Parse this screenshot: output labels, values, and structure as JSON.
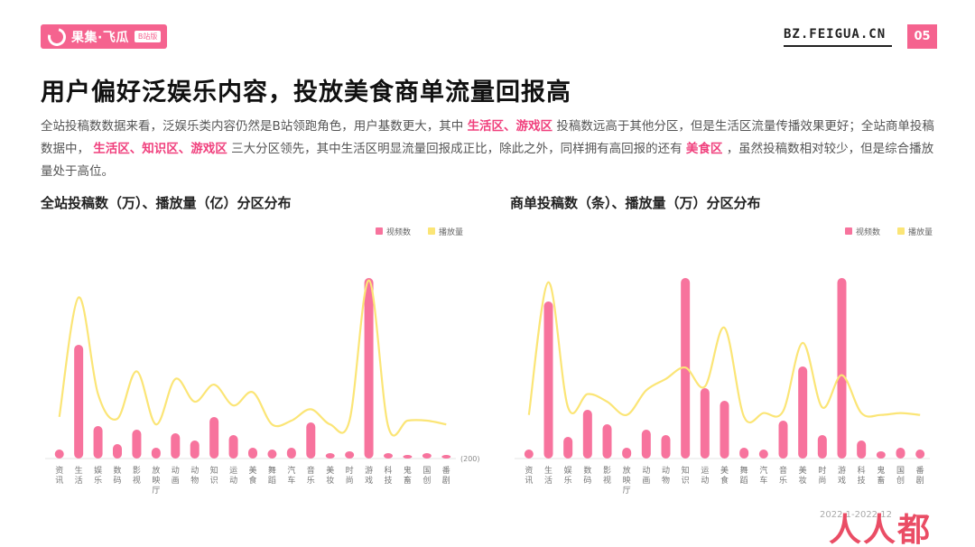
{
  "brand": {
    "name": "果集·飞瓜",
    "badge": "B站版",
    "site": "BZ.FEIGUA.CN",
    "page": "05"
  },
  "title": "用户偏好泛娱乐内容，投放美食商单流量回报高",
  "description": {
    "p1": "全站投稿数数据来看，泛娱乐类内容仍然是B站领跑角色，用户基数更大，其中",
    "h1": "生活区、游戏区",
    "p2": "投稿数远高于其他分区，但是生活区流量传播效果更好；全站商单投稿数据中，",
    "h2": "生活区、知识区、游戏区",
    "p3": "三大分区领先，其中生活区明显流量回报成正比，除此之外，同样拥有高回报的还有",
    "h3": "美食区",
    "p4": "，虽然投稿数相对较少，但是综合播放量处于高位。"
  },
  "footer": {
    "note": "2022.1-2022.12",
    "watermark": "人人都"
  },
  "colors": {
    "bar": "#f7739d",
    "line": "#fbe576",
    "accent": "#f5638f"
  },
  "chart_data": [
    {
      "type": "bar",
      "title": "全站投稿数（万）、播放量（亿）分区分布",
      "legend": [
        "视频数",
        "播放量"
      ],
      "legend_position": "top-right",
      "annotation": "(200)",
      "categories": [
        "资讯",
        "生活",
        "娱乐",
        "数码",
        "影视",
        "放映厅",
        "动画",
        "动物",
        "知识",
        "运动",
        "美食",
        "舞蹈",
        "汽车",
        "音乐",
        "美妆",
        "时尚",
        "游戏",
        "科技",
        "鬼畜",
        "国创",
        "番剧"
      ],
      "series": [
        {
          "name": "视频数",
          "type": "bar",
          "values": [
            5,
            63,
            18,
            8,
            16,
            6,
            14,
            10,
            23,
            13,
            6,
            5,
            6,
            20,
            3,
            4,
            100,
            3,
            2,
            3,
            2
          ]
        },
        {
          "name": "播放量",
          "type": "line",
          "values": [
            22,
            85,
            34,
            21,
            46,
            18,
            42,
            30,
            39,
            28,
            35,
            18,
            20,
            26,
            18,
            20,
            94,
            17,
            20,
            20,
            18
          ]
        }
      ],
      "grid": false
    },
    {
      "type": "bar",
      "title": "商单投稿数（条）、播放量（万）分区分布",
      "legend": [
        "视频数",
        "播放量"
      ],
      "legend_position": "top-right",
      "categories": [
        "资讯",
        "生活",
        "娱乐",
        "数码",
        "影视",
        "放映厅",
        "动画",
        "动物",
        "知识",
        "运动",
        "美食",
        "舞蹈",
        "汽车",
        "音乐",
        "美妆",
        "时尚",
        "游戏",
        "科技",
        "鬼畜",
        "国创",
        "番剧"
      ],
      "series": [
        {
          "name": "视频数",
          "type": "bar",
          "values": [
            5,
            87,
            12,
            27,
            19,
            6,
            16,
            13,
            100,
            39,
            32,
            6,
            5,
            21,
            51,
            13,
            100,
            10,
            4,
            6,
            5
          ]
        },
        {
          "name": "播放量",
          "type": "line",
          "values": [
            23,
            93,
            27,
            34,
            30,
            23,
            36,
            42,
            48,
            38,
            69,
            22,
            24,
            25,
            61,
            27,
            44,
            24,
            23,
            24,
            23
          ]
        }
      ],
      "grid": false
    }
  ]
}
